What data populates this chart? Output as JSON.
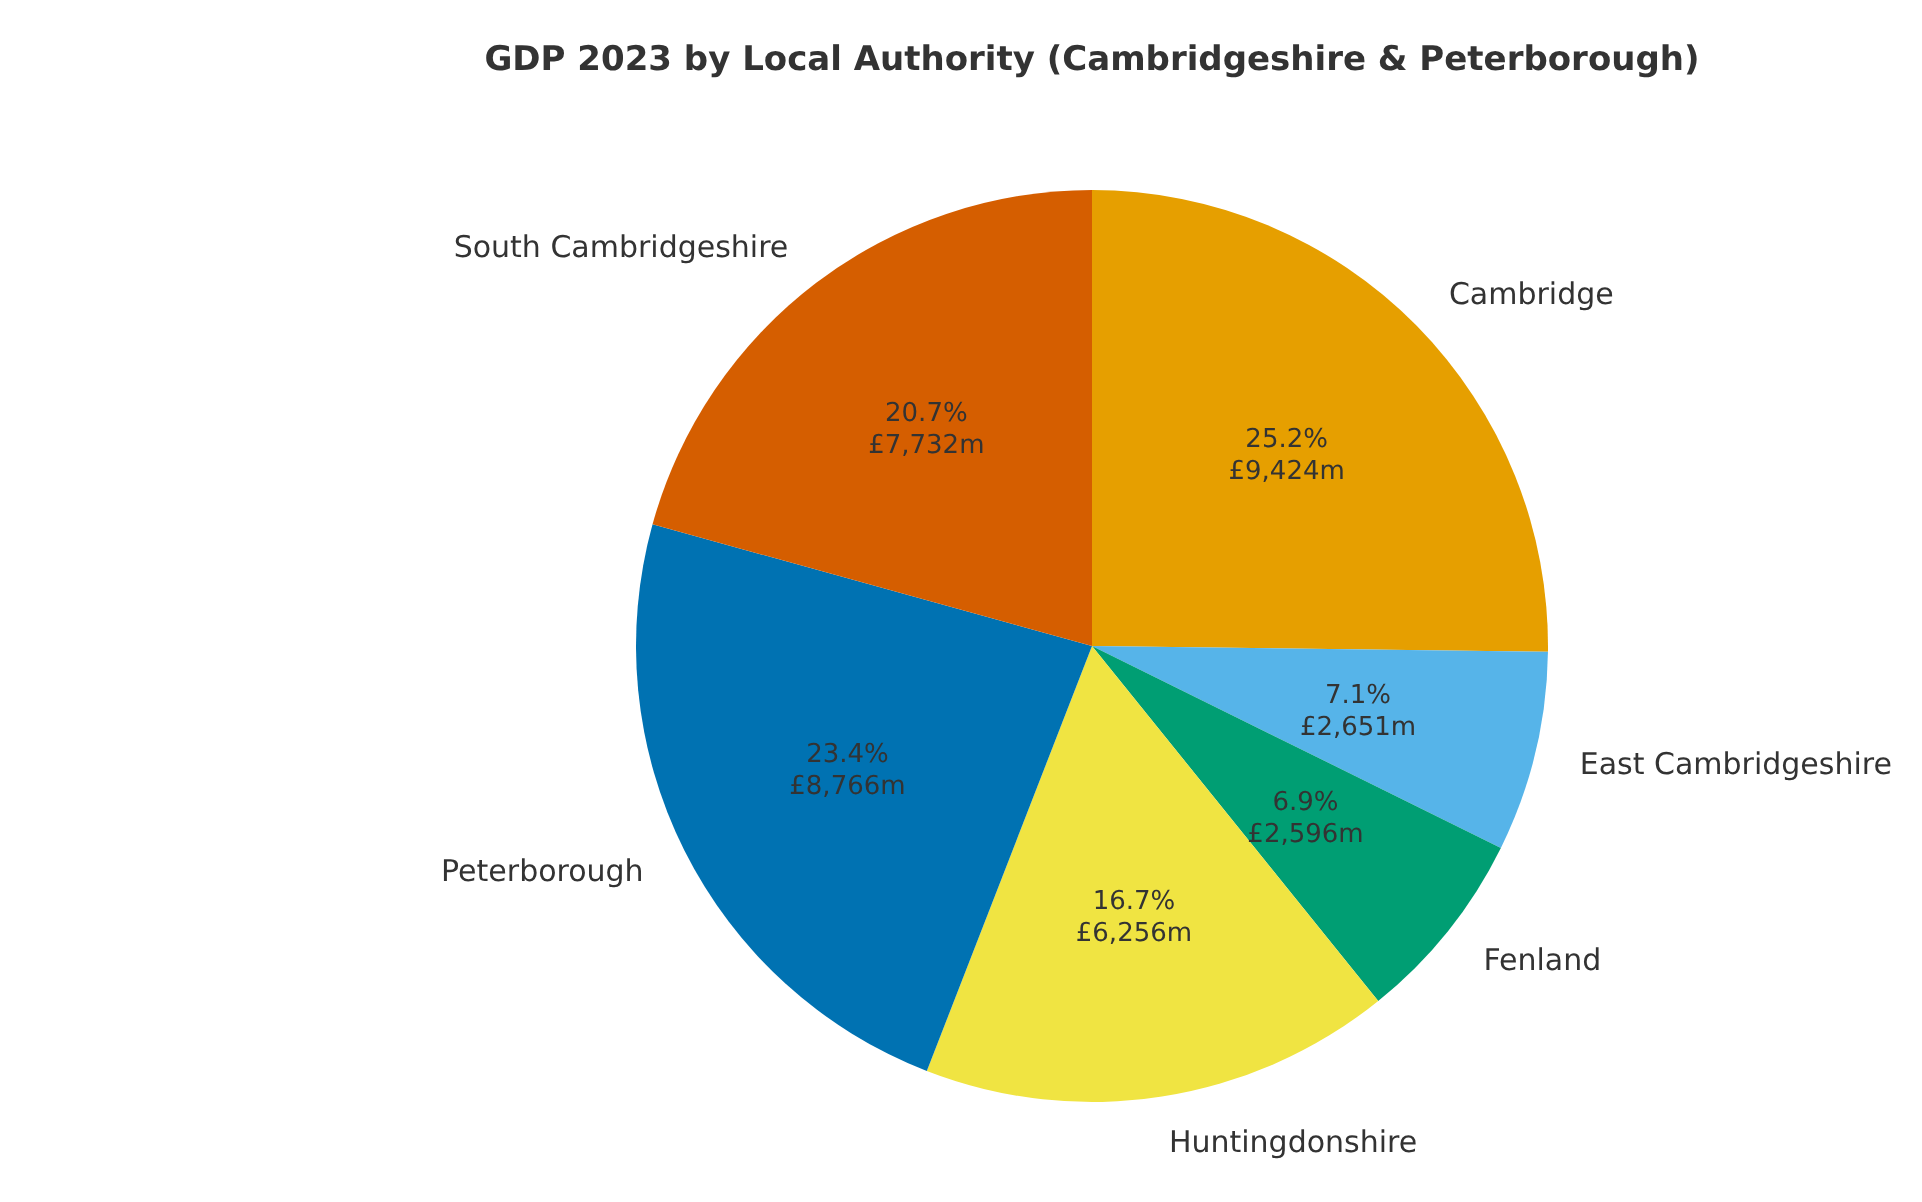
{
  "chart_data": {
    "type": "pie",
    "title": "GDP 2023 by Local Authority (Cambridgeshire & Peterborough)",
    "categories": [
      "Cambridge",
      "East Cambridgeshire",
      "Fenland",
      "Huntingdonshire",
      "Peterborough",
      "South Cambridgeshire"
    ],
    "values": [
      25.2,
      7.1,
      6.9,
      16.7,
      23.4,
      20.7
    ],
    "colors": [
      "#e69f00",
      "#56b4e9",
      "#009e73",
      "#f0e442",
      "#0072b2",
      "#d55e00"
    ],
    "value_labels": [
      "25.2%\n£9,424m",
      "7.1%\n£2,651m",
      "6.9%\n£2,596m",
      "16.7%\n£6,256m",
      "23.4%\n£8,766m",
      "20.7%\n£7,732m"
    ],
    "legend": false
  }
}
